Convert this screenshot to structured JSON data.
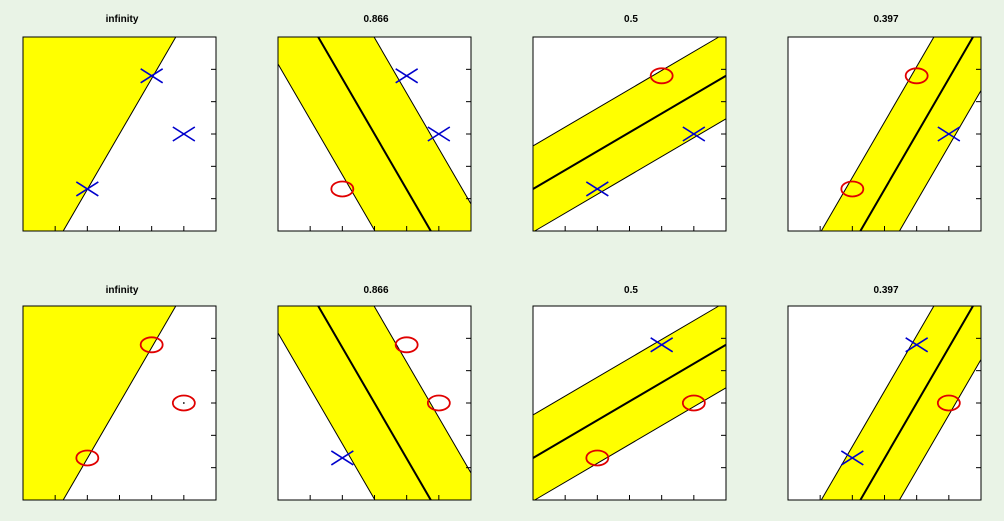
{
  "colors": {
    "background": "#e9f3e6",
    "plot_area": "#ffffff",
    "band_fill": "#ffff00",
    "line": "#000000",
    "cross_marker": "#0000cc",
    "circle_marker": "#e00000"
  },
  "chart_data": [
    {
      "type": "scatter",
      "title": "infinity",
      "xlim": [
        0,
        6
      ],
      "ylim": [
        0,
        6
      ],
      "xticks": [
        1,
        2,
        3,
        4,
        5
      ],
      "yticks": [
        1,
        2,
        3,
        4,
        5
      ],
      "region": {
        "kind": "half-plane",
        "line": [
          [
            1.25,
            0
          ],
          [
            4.75,
            6
          ]
        ],
        "fill_side": "left"
      },
      "points": [
        {
          "x": 2,
          "y": 1.3,
          "marker": "cross"
        },
        {
          "x": 4,
          "y": 4.8,
          "marker": "cross"
        },
        {
          "x": 5,
          "y": 3,
          "marker": "cross"
        }
      ]
    },
    {
      "type": "scatter",
      "title": "0.866",
      "xlim": [
        0,
        6
      ],
      "ylim": [
        0,
        6
      ],
      "xticks": [
        1,
        2,
        3,
        4,
        5
      ],
      "yticks": [
        1,
        2,
        3,
        4,
        5
      ],
      "region": {
        "kind": "band",
        "center": [
          [
            1.25,
            6
          ],
          [
            4.75,
            0
          ]
        ],
        "offset": 1.5
      },
      "points": [
        {
          "x": 2,
          "y": 1.3,
          "marker": "circle"
        },
        {
          "x": 4,
          "y": 4.8,
          "marker": "cross"
        },
        {
          "x": 5,
          "y": 3,
          "marker": "cross"
        }
      ]
    },
    {
      "type": "scatter",
      "title": "0.5",
      "xlim": [
        0,
        6
      ],
      "ylim": [
        0,
        6
      ],
      "xticks": [
        1,
        2,
        3,
        4,
        5
      ],
      "yticks": [
        1,
        2,
        3,
        4,
        5
      ],
      "region": {
        "kind": "band",
        "center": [
          [
            0,
            1.3
          ],
          [
            6,
            4.8
          ]
        ],
        "offset": 1.15
      },
      "points": [
        {
          "x": 2,
          "y": 1.3,
          "marker": "cross"
        },
        {
          "x": 4,
          "y": 4.8,
          "marker": "circle"
        },
        {
          "x": 5,
          "y": 3,
          "marker": "cross"
        }
      ]
    },
    {
      "type": "scatter",
      "title": "0.397",
      "xlim": [
        0,
        6
      ],
      "ylim": [
        0,
        6
      ],
      "xticks": [
        1,
        2,
        3,
        4,
        5
      ],
      "yticks": [
        1,
        2,
        3,
        4,
        5
      ],
      "region": {
        "kind": "band",
        "center": [
          [
            2.25,
            0
          ],
          [
            5.75,
            6
          ]
        ],
        "offset": 1.05
      },
      "points": [
        {
          "x": 2,
          "y": 1.3,
          "marker": "circle"
        },
        {
          "x": 4,
          "y": 4.8,
          "marker": "circle"
        },
        {
          "x": 5,
          "y": 3,
          "marker": "cross"
        }
      ]
    },
    {
      "type": "scatter",
      "title": "infinity",
      "xlim": [
        0,
        6
      ],
      "ylim": [
        0,
        6
      ],
      "xticks": [
        1,
        2,
        3,
        4,
        5
      ],
      "yticks": [
        1,
        2,
        3,
        4,
        5
      ],
      "region": {
        "kind": "half-plane",
        "line": [
          [
            1.25,
            0
          ],
          [
            4.75,
            6
          ]
        ],
        "fill_side": "left"
      },
      "points": [
        {
          "x": 2,
          "y": 1.3,
          "marker": "circle"
        },
        {
          "x": 4,
          "y": 4.8,
          "marker": "circle"
        },
        {
          "x": 5,
          "y": 3,
          "marker": "circle",
          "center_dot": true
        }
      ]
    },
    {
      "type": "scatter",
      "title": "0.866",
      "xlim": [
        0,
        6
      ],
      "ylim": [
        0,
        6
      ],
      "xticks": [
        1,
        2,
        3,
        4,
        5
      ],
      "yticks": [
        1,
        2,
        3,
        4,
        5
      ],
      "region": {
        "kind": "band",
        "center": [
          [
            1.25,
            6
          ],
          [
            4.75,
            0
          ]
        ],
        "offset": 1.5
      },
      "points": [
        {
          "x": 2,
          "y": 1.3,
          "marker": "cross"
        },
        {
          "x": 4,
          "y": 4.8,
          "marker": "circle"
        },
        {
          "x": 5,
          "y": 3,
          "marker": "circle"
        }
      ]
    },
    {
      "type": "scatter",
      "title": "0.5",
      "xlim": [
        0,
        6
      ],
      "ylim": [
        0,
        6
      ],
      "xticks": [
        1,
        2,
        3,
        4,
        5
      ],
      "yticks": [
        1,
        2,
        3,
        4,
        5
      ],
      "region": {
        "kind": "band",
        "center": [
          [
            0,
            1.3
          ],
          [
            6,
            4.8
          ]
        ],
        "offset": 1.15
      },
      "points": [
        {
          "x": 2,
          "y": 1.3,
          "marker": "circle"
        },
        {
          "x": 4,
          "y": 4.8,
          "marker": "cross"
        },
        {
          "x": 5,
          "y": 3,
          "marker": "circle"
        }
      ]
    },
    {
      "type": "scatter",
      "title": "0.397",
      "xlim": [
        0,
        6
      ],
      "ylim": [
        0,
        6
      ],
      "xticks": [
        1,
        2,
        3,
        4,
        5
      ],
      "yticks": [
        1,
        2,
        3,
        4,
        5
      ],
      "region": {
        "kind": "band",
        "center": [
          [
            2.25,
            0
          ],
          [
            5.75,
            6
          ]
        ],
        "offset": 1.05
      },
      "points": [
        {
          "x": 2,
          "y": 1.3,
          "marker": "cross"
        },
        {
          "x": 4,
          "y": 4.8,
          "marker": "cross"
        },
        {
          "x": 5,
          "y": 3,
          "marker": "circle"
        }
      ]
    }
  ]
}
